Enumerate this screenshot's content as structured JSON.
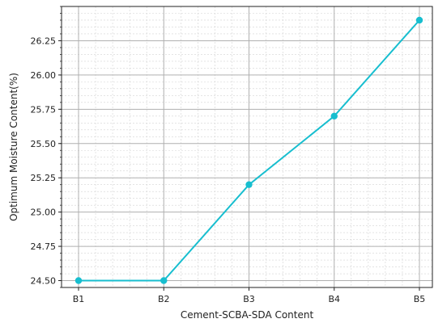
{
  "chart_data": {
    "type": "line",
    "title": "",
    "xlabel": "Cement-SCBA-SDA Content",
    "ylabel": "Optimum Moisture Content(%)",
    "categories": [
      "B1",
      "B2",
      "B3",
      "B4",
      "B5"
    ],
    "series": [
      {
        "values": [
          24.5,
          24.5,
          25.2,
          25.7,
          26.4
        ]
      }
    ],
    "ylim": [
      24.45,
      26.5
    ],
    "yticks": [
      "24.50",
      "24.75",
      "25.00",
      "25.25",
      "25.50",
      "25.75",
      "26.00",
      "26.25"
    ],
    "grid": true,
    "line_color": "#17becf"
  }
}
